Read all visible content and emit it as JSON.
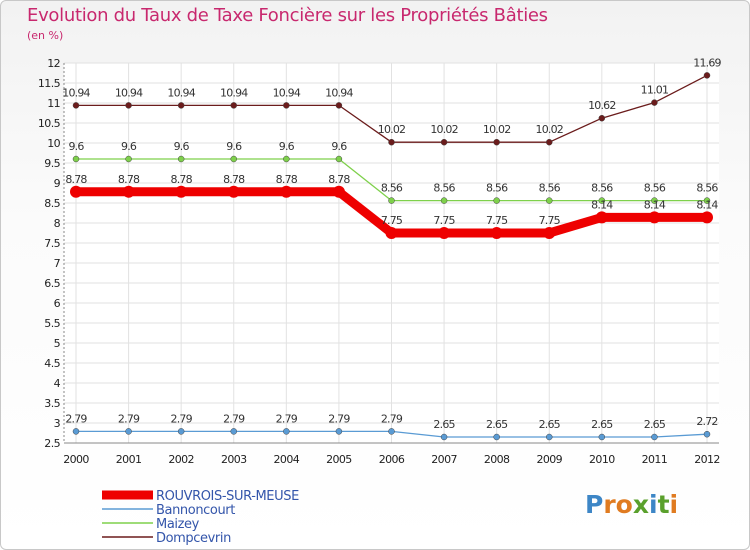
{
  "header": {
    "title": "Evolution du Taux de Taxe Foncière sur les Propriétés Bâties",
    "subtitle": "(en %)"
  },
  "logo": {
    "letters": [
      "P",
      "r",
      "o",
      "x",
      "i",
      "t",
      "i"
    ],
    "colors": [
      "#3d86c6",
      "#e07b20",
      "#e07b20",
      "#5aa02c",
      "#3d86c6",
      "#5aa02c",
      "#e07b20"
    ]
  },
  "chart_data": {
    "type": "line",
    "title": "Evolution du Taux de Taxe Foncière sur les Propriétés Bâties",
    "ylabel": "(en %)",
    "xlabel": "",
    "x": [
      "2000",
      "2001",
      "2002",
      "2003",
      "2004",
      "2005",
      "2006",
      "2007",
      "2008",
      "2009",
      "2010",
      "2011",
      "2012"
    ],
    "ylim": [
      2.5,
      12
    ],
    "yticks": [
      2.5,
      3,
      3.5,
      4,
      4.5,
      5,
      5.5,
      6,
      6.5,
      7,
      7.5,
      8,
      8.5,
      9,
      9.5,
      10,
      10.5,
      11,
      11.5,
      12
    ],
    "ytick_labels": [
      "2.5",
      "3",
      "3.5",
      "4",
      "4.5",
      "5",
      "5.5",
      "6",
      "6.5",
      "7",
      "7.5",
      "8",
      "8.5",
      "9",
      "9.5",
      "10",
      "10.5",
      "11",
      "11.5",
      "12"
    ],
    "grid": true,
    "legend_position": "bottom-left",
    "series": [
      {
        "name": "Dompcevrin",
        "color": "#6b1c1c",
        "values": [
          10.94,
          10.94,
          10.94,
          10.94,
          10.94,
          10.94,
          10.02,
          10.02,
          10.02,
          10.02,
          10.62,
          11.01,
          11.69
        ],
        "labels": [
          "10.94",
          "10.94",
          "10.94",
          "10.94",
          "10.94",
          "10.94",
          "10.02",
          "10.02",
          "10.02",
          "10.02",
          "10.62",
          "11.01",
          "11.69"
        ]
      },
      {
        "name": "Maizey",
        "color": "#7ed04b",
        "values": [
          9.6,
          9.6,
          9.6,
          9.6,
          9.6,
          9.6,
          8.56,
          8.56,
          8.56,
          8.56,
          8.56,
          8.56,
          8.56
        ],
        "labels": [
          "9.6",
          "9.6",
          "9.6",
          "9.6",
          "9.6",
          "9.6",
          "8.56",
          "8.56",
          "8.56",
          "8.56",
          "8.56",
          "8.56",
          "8.56"
        ]
      },
      {
        "name": "ROUVROIS-SUR-MEUSE",
        "color": "#ee0000",
        "values": [
          8.78,
          8.78,
          8.78,
          8.78,
          8.78,
          8.78,
          7.75,
          7.75,
          7.75,
          7.75,
          8.14,
          8.14,
          8.14
        ],
        "labels": [
          "8.78",
          "8.78",
          "8.78",
          "8.78",
          "8.78",
          "8.78",
          "7.75",
          "7.75",
          "7.75",
          "7.75",
          "8.14",
          "8.14",
          "8.14"
        ]
      },
      {
        "name": "Bannoncourt",
        "color": "#5a9bd4",
        "values": [
          2.79,
          2.79,
          2.79,
          2.79,
          2.79,
          2.79,
          2.79,
          2.65,
          2.65,
          2.65,
          2.65,
          2.65,
          2.72
        ],
        "labels": [
          "2.79",
          "2.79",
          "2.79",
          "2.79",
          "2.79",
          "2.79",
          "2.79",
          "2.65",
          "2.65",
          "2.65",
          "2.65",
          "2.65",
          "2.72"
        ]
      }
    ],
    "legend": [
      {
        "name": "ROUVROIS-SUR-MEUSE",
        "color": "#ee0000",
        "style": "thick"
      },
      {
        "name": "Bannoncourt",
        "color": "#5a9bd4",
        "style": "thin"
      },
      {
        "name": "Maizey",
        "color": "#7ed04b",
        "style": "thin"
      },
      {
        "name": "Dompcevrin",
        "color": "#6b1c1c",
        "style": "thin"
      }
    ]
  }
}
